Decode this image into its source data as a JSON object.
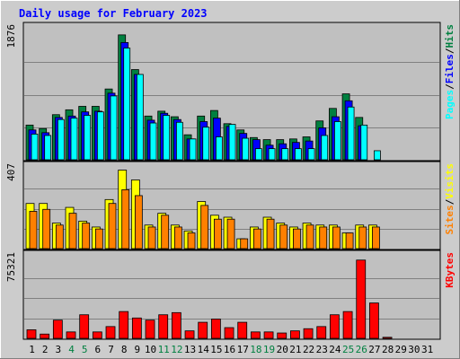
{
  "chart_data": {
    "type": "bar",
    "title": "Daily usage for February 2023",
    "x": [
      "1",
      "2",
      "3",
      "4",
      "5",
      "6",
      "7",
      "8",
      "9",
      "10",
      "11",
      "12",
      "13",
      "14",
      "15",
      "16",
      "17",
      "18",
      "19",
      "20",
      "21",
      "22",
      "23",
      "24",
      "25",
      "26",
      "27",
      "28",
      "29",
      "30",
      "31"
    ],
    "weekend_days": [
      "4",
      "5",
      "11",
      "12",
      "18",
      "19",
      "25",
      "26"
    ],
    "panels": [
      {
        "max_label": "1876",
        "ymax": 1876,
        "legend": [
          "Pages",
          "/",
          "Files",
          "/",
          "Hits"
        ],
        "series": [
          {
            "name": "Hits",
            "values": [
              500,
              450,
              650,
              720,
              770,
              770,
              1020,
              1800,
              1300,
              630,
              700,
              620,
              360,
              630,
              710,
              520,
              430,
              320,
              290,
              290,
              300,
              330,
              560,
              740,
              950,
              610,
              0,
              0,
              0,
              0,
              0
            ]
          },
          {
            "name": "Files",
            "values": [
              430,
              390,
              610,
              630,
              690,
              700,
              960,
              1690,
              1230,
              570,
              670,
              580,
              300,
              550,
              600,
              480,
              380,
              290,
              210,
              230,
              250,
              270,
              460,
              620,
              850,
              490,
              0,
              0,
              0,
              0,
              0
            ]
          },
          {
            "name": "Pages",
            "values": [
              370,
              350,
              580,
              600,
              640,
              690,
              920,
              1610,
              1230,
              530,
              640,
              540,
              300,
              470,
              330,
              510,
              310,
              160,
              160,
              160,
              160,
              160,
              350,
              550,
              760,
              500,
              130,
              0,
              0,
              0,
              0
            ]
          }
        ]
      },
      {
        "max_label": "407",
        "ymax": 407,
        "legend": [
          "Sites",
          "/",
          "Visits"
        ],
        "series": [
          {
            "name": "Visits",
            "values": [
              230,
              230,
              130,
              210,
              140,
              110,
              250,
              400,
              350,
              120,
              180,
              120,
              90,
              240,
              170,
              160,
              50,
              110,
              160,
              130,
              110,
              130,
              120,
              120,
              80,
              120,
              120,
              0,
              0,
              0,
              0
            ]
          },
          {
            "name": "Sites",
            "values": [
              190,
              200,
              120,
              180,
              130,
              100,
              230,
              300,
              270,
              110,
              170,
              110,
              80,
              220,
              150,
              150,
              50,
              100,
              150,
              120,
              100,
              120,
              110,
              110,
              80,
              110,
              110,
              0,
              0,
              0,
              0
            ]
          }
        ]
      },
      {
        "max_label": "75321",
        "ymax": 75321,
        "legend": [
          "KBytes"
        ],
        "series": [
          {
            "name": "KBytes",
            "values": [
              8000,
              4000,
              17000,
              6000,
              22000,
              6000,
              11000,
              25000,
              19000,
              17000,
              22000,
              24000,
              7000,
              15000,
              18000,
              10000,
              15000,
              6000,
              6000,
              5000,
              7000,
              9000,
              11000,
              22000,
              25000,
              73000,
              33000,
              1000,
              0,
              0,
              0
            ]
          }
        ]
      }
    ],
    "colors": {
      "hits": "#008040",
      "files": "#0000ff",
      "pages": "#00ffff",
      "visits": "#ffff00",
      "sites": "#ff8000",
      "kbytes": "#ff0000",
      "title_text": "#0000ff",
      "weekend_text": "#008040",
      "plot_bg": "#c0c0c0",
      "page_bg": "#cccccc"
    }
  }
}
